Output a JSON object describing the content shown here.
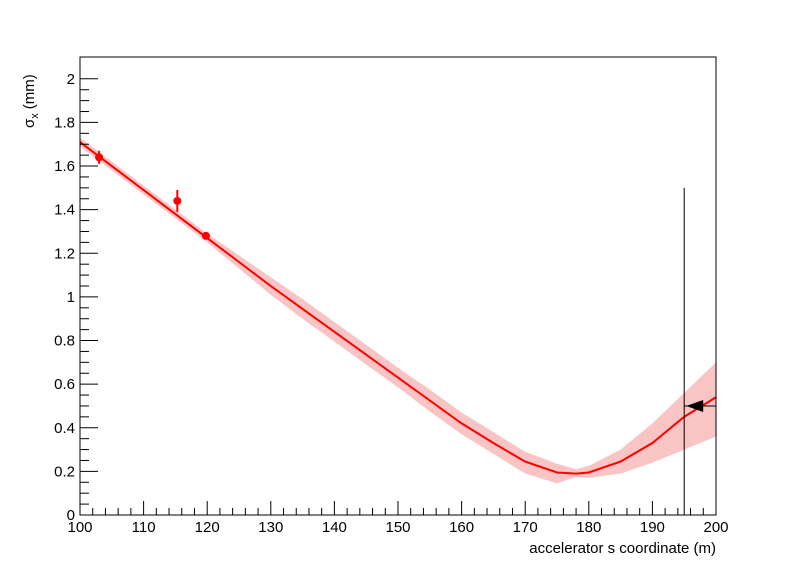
{
  "chart_data": {
    "type": "fit",
    "y_label": {
      "symbol": "σ",
      "subscript": "x",
      "unit": "(mm)"
    },
    "x_label": "accelerator s coordinate (m)",
    "xlim": [
      100,
      200
    ],
    "xticks": [
      100,
      110,
      120,
      130,
      140,
      150,
      160,
      170,
      180,
      190,
      200
    ],
    "ylim": [
      0,
      2.1
    ],
    "yticks": [
      0,
      0.2,
      0.4,
      0.6,
      0.8,
      1,
      1.2,
      1.4,
      1.6,
      1.8,
      2
    ],
    "color": "#ff0000",
    "band_color": "#f8c4c4",
    "points": {
      "x": [
        103,
        115.3,
        119.8
      ],
      "values": [
        1.64,
        1.44,
        1.28
      ],
      "errors": [
        0.03,
        0.05,
        0.01
      ]
    },
    "fit": {
      "x": [
        100,
        105,
        110,
        115,
        120,
        125,
        130,
        135,
        140,
        145,
        150,
        155,
        160,
        165,
        170,
        175,
        178,
        180,
        185,
        190,
        195,
        200
      ],
      "values": [
        1.71,
        1.6,
        1.49,
        1.38,
        1.27,
        1.16,
        1.05,
        0.945,
        0.84,
        0.735,
        0.63,
        0.525,
        0.42,
        0.33,
        0.245,
        0.195,
        0.19,
        0.195,
        0.245,
        0.33,
        0.45,
        0.54
      ],
      "upper": [
        1.73,
        1.62,
        1.51,
        1.4,
        1.29,
        1.19,
        1.09,
        0.99,
        0.885,
        0.78,
        0.675,
        0.575,
        0.47,
        0.38,
        0.29,
        0.235,
        0.21,
        0.225,
        0.3,
        0.42,
        0.56,
        0.7
      ],
      "lower": [
        1.69,
        1.58,
        1.47,
        1.36,
        1.25,
        1.13,
        1.01,
        0.9,
        0.795,
        0.69,
        0.585,
        0.475,
        0.37,
        0.28,
        0.19,
        0.145,
        0.175,
        0.17,
        0.19,
        0.24,
        0.3,
        0.36
      ]
    },
    "marker": {
      "x": 195,
      "y": [
        0,
        1.5
      ],
      "arrow_y": 0.5,
      "arrow_x": [
        200,
        195
      ]
    }
  }
}
